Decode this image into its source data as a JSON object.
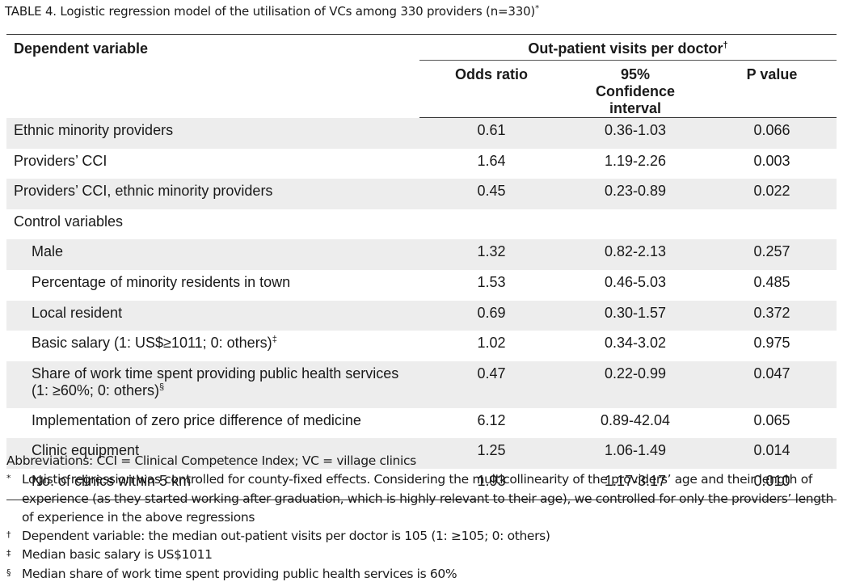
{
  "caption": {
    "text": "TABLE 4.  Logistic regression model of the utilisation of VCs among 330 providers (n=330)",
    "mark": "*"
  },
  "table": {
    "dependent_header": "Dependent variable",
    "group_header": "Out-patient visits per doctor",
    "group_mark": "†",
    "columns": [
      "Odds ratio",
      "95% Confidence interval",
      "P value"
    ],
    "rows": [
      {
        "label": "Ethnic minority providers",
        "mark": "",
        "odds": "0.61",
        "ci": "0.36-1.03",
        "p": "0.066",
        "indent": false,
        "shade": true
      },
      {
        "label": "Providers’ CCI",
        "mark": "",
        "odds": "1.64",
        "ci": "1.19-2.26",
        "p": "0.003",
        "indent": false,
        "shade": false
      },
      {
        "label": "Providers’ CCI, ethnic minority providers",
        "mark": "",
        "odds": "0.45",
        "ci": "0.23-0.89",
        "p": "0.022",
        "indent": false,
        "shade": true
      },
      {
        "label": "Control variables",
        "mark": "",
        "odds": "",
        "ci": "",
        "p": "",
        "indent": false,
        "shade": false
      },
      {
        "label": "Male",
        "mark": "",
        "odds": "1.32",
        "ci": "0.82-2.13",
        "p": "0.257",
        "indent": true,
        "shade": true
      },
      {
        "label": "Percentage of minority residents in town",
        "mark": "",
        "odds": "1.53",
        "ci": "0.46-5.03",
        "p": "0.485",
        "indent": true,
        "shade": false
      },
      {
        "label": "Local resident",
        "mark": "",
        "odds": "0.69",
        "ci": "0.30-1.57",
        "p": "0.372",
        "indent": true,
        "shade": true
      },
      {
        "label": "Basic salary (1: US$≥1011; 0: others)",
        "mark": "‡",
        "odds": "1.02",
        "ci": "0.34-3.02",
        "p": "0.975",
        "indent": true,
        "shade": false
      },
      {
        "label": "Share of work time spent providing public health services (1: ≥60%; 0: others)",
        "mark": "§",
        "odds": "0.47",
        "ci": "0.22-0.99",
        "p": "0.047",
        "indent": true,
        "shade": true
      },
      {
        "label": "Implementation of zero price difference of medicine",
        "mark": "",
        "odds": "6.12",
        "ci": "0.89-42.04",
        "p": "0.065",
        "indent": true,
        "shade": false
      },
      {
        "label": "Clinic equipment",
        "mark": "",
        "odds": "1.25",
        "ci": "1.06-1.49",
        "p": "0.014",
        "indent": true,
        "shade": true
      },
      {
        "label": "No. of clinics within 5 km",
        "mark": "",
        "odds": "1.93",
        "ci": "1.17-3.17",
        "p": "0.010",
        "indent": true,
        "shade": false
      }
    ]
  },
  "notes": {
    "abbreviations": "Abbreviations: CCI = Clinical Competence Index; VC = village clinics",
    "footnotes": [
      {
        "mark": "*",
        "text": "Logistic regression was controlled for county-fixed effects. Considering the multicollinearity of the providers’ age and their length of experience (as they started working after graduation, which is highly relevant to their age), we controlled for only the providers’ length of experience in the above regressions"
      },
      {
        "mark": "†",
        "text": "Dependent variable: the median out-patient visits per doctor is 105 (1: ≥105; 0: others)"
      },
      {
        "mark": "‡",
        "text": "Median basic salary is US$1011"
      },
      {
        "mark": "§",
        "text": "Median share of work time spent providing public health services is 60%"
      }
    ]
  }
}
